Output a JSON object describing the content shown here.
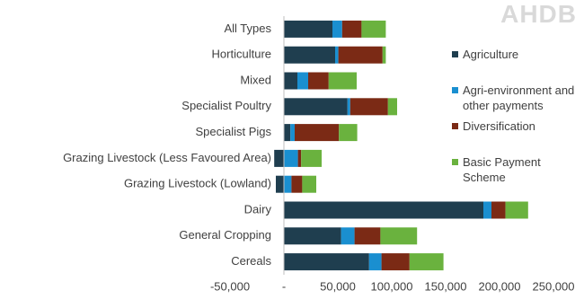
{
  "logo": "AHDB",
  "chart_data": {
    "type": "stacked-barh",
    "categories": [
      "All Types",
      "Horticulture",
      "Mixed",
      "Specialist Poultry",
      "Specialist Pigs",
      "Grazing Livestock (Less Favoured Area)",
      "Grazing Livestock (Lowland)",
      "Dairy",
      "General Cropping",
      "Cereals"
    ],
    "series": [
      {
        "name": "Agriculture",
        "color": "#1f3e4f",
        "values": [
          45000,
          47500,
          12500,
          59000,
          6000,
          -9000,
          -7500,
          185000,
          53000,
          79000
        ]
      },
      {
        "name": "Agri-environment and other payments",
        "color": "#1a8fd0",
        "values": [
          9000,
          3000,
          10000,
          2500,
          4000,
          13000,
          7000,
          7500,
          12500,
          11500
        ]
      },
      {
        "name": "Diversification",
        "color": "#7b2a15",
        "values": [
          18000,
          41000,
          19000,
          35000,
          41000,
          3000,
          10000,
          13000,
          24000,
          26000
        ]
      },
      {
        "name": "Basic Payment Scheme",
        "color": "#6ab23e",
        "values": [
          22500,
          3000,
          26000,
          8500,
          17000,
          19000,
          13000,
          21000,
          34000,
          31500
        ]
      }
    ],
    "xlim": [
      -50000,
      250000
    ],
    "xticks": [
      {
        "value": -50000,
        "label": "-50,000"
      },
      {
        "value": 0,
        "label": "-"
      },
      {
        "value": 50000,
        "label": "50,000"
      },
      {
        "value": 100000,
        "label": "100,000"
      },
      {
        "value": 150000,
        "label": "150,000"
      },
      {
        "value": 200000,
        "label": "200,000"
      },
      {
        "value": 250000,
        "label": "250,000"
      }
    ],
    "legend": "right"
  }
}
